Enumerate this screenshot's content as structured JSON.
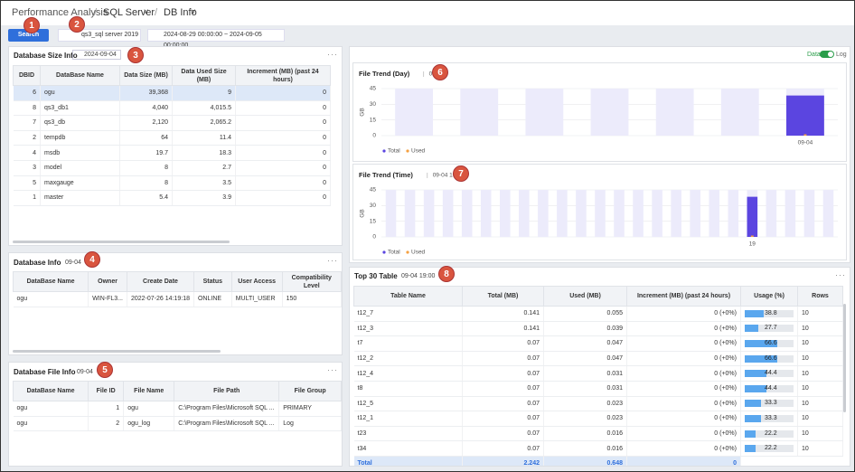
{
  "header": {
    "breadcrumb": [
      "Performance Analysis",
      "SQL Server",
      "DB Info"
    ]
  },
  "toolbar": {
    "search": "Search",
    "server": "qs3_sql server 2019",
    "date_range": "2024-08-29 00:00:00 ~ 2024-09-05 00:00:00"
  },
  "markers": [
    "1",
    "2",
    "3",
    "4",
    "5",
    "6",
    "7",
    "8"
  ],
  "db_size": {
    "title": "Database Size Info",
    "date": "2024-09-04",
    "columns": [
      "DBID",
      "DataBase Name",
      "Data Size (MB)",
      "Data Used Size (MB)",
      "Increment (MB) (past 24 hours)"
    ],
    "rows": [
      [
        6,
        "ogu",
        "39,368",
        9,
        0
      ],
      [
        8,
        "qs3_db1",
        "4,040",
        "4,015.5",
        0
      ],
      [
        7,
        "qs3_db",
        "2,120",
        "2,065.2",
        0
      ],
      [
        2,
        "tempdb",
        64,
        11.4,
        0
      ],
      [
        4,
        "msdb",
        19.7,
        18.3,
        0
      ],
      [
        3,
        "model",
        8,
        2.7,
        0
      ],
      [
        5,
        "maxgauge",
        8,
        3.5,
        0
      ],
      [
        1,
        "master",
        5.4,
        3.9,
        0
      ]
    ]
  },
  "db_info": {
    "title": "Database Info",
    "date": "09-04",
    "columns": [
      "DataBase Name",
      "Owner",
      "Create Date",
      "Status",
      "User Access",
      "Compatibility Level"
    ],
    "rows": [
      [
        "ogu",
        "WIN-FL3...",
        "2022-07-26 14:19:18",
        "ONLINE",
        "MULTI_USER",
        150
      ]
    ]
  },
  "db_file": {
    "title": "Database File Info",
    "date": "09-04",
    "columns": [
      "DataBase Name",
      "File ID",
      "File Name",
      "File Path",
      "File Group"
    ],
    "rows": [
      [
        "ogu",
        1,
        "ogu",
        "C:\\Program Files\\Microsoft SQL ...",
        "PRIMARY"
      ],
      [
        "ogu",
        2,
        "ogu_log",
        "C:\\Program Files\\Microsoft SQL ...",
        "Log"
      ]
    ]
  },
  "toggle": {
    "left": "Data",
    "right": "Log"
  },
  "chart_data": [
    {
      "type": "bar",
      "title": "File Trend (Day)",
      "subtitle": "09-04",
      "y_label": "GB",
      "categories": [
        null,
        null,
        null,
        null,
        null,
        null,
        "09-04"
      ],
      "ylim": [
        0,
        45
      ],
      "yticks": [
        0,
        15,
        30,
        45
      ],
      "grid": true,
      "series": [
        {
          "name": "Total",
          "color": "#5b45e0",
          "values": [
            null,
            null,
            null,
            null,
            null,
            null,
            38.4
          ]
        },
        {
          "name": "Used",
          "color": "#f5a142",
          "values": [
            null,
            null,
            null,
            null,
            null,
            null,
            0.01
          ]
        }
      ]
    },
    {
      "type": "bar",
      "title": "File Trend (Time)",
      "subtitle": "09-04 19:00",
      "y_label": "GB",
      "categories": [
        null,
        null,
        null,
        null,
        null,
        null,
        null,
        null,
        null,
        null,
        null,
        null,
        null,
        null,
        null,
        null,
        null,
        null,
        null,
        "19",
        null,
        null,
        null,
        null
      ],
      "ylim": [
        0,
        45
      ],
      "yticks": [
        0,
        15,
        30,
        45
      ],
      "grid": true,
      "series": [
        {
          "name": "Total",
          "color": "#5b45e0",
          "values": [
            null,
            null,
            null,
            null,
            null,
            null,
            null,
            null,
            null,
            null,
            null,
            null,
            null,
            null,
            null,
            null,
            null,
            null,
            null,
            38.4,
            null,
            null,
            null,
            null
          ]
        },
        {
          "name": "Used",
          "color": "#f5a142",
          "values": [
            null,
            null,
            null,
            null,
            null,
            null,
            null,
            null,
            null,
            null,
            null,
            null,
            null,
            null,
            null,
            null,
            null,
            null,
            null,
            0.01,
            null,
            null,
            null,
            null
          ]
        }
      ]
    }
  ],
  "top30": {
    "title": "Top 30 Table",
    "date": "09-04 19:00",
    "columns": [
      "Table Name",
      "Total (MB)",
      "Used (MB)",
      "Increment (MB) (past 24 hours)",
      "Usage (%)",
      "Rows"
    ],
    "rows": [
      [
        "t12_7",
        0.141,
        0.055,
        "0 (+0%)",
        38.8,
        10
      ],
      [
        "t12_3",
        0.141,
        0.039,
        "0 (+0%)",
        27.7,
        10
      ],
      [
        "t7",
        0.07,
        0.047,
        "0 (+0%)",
        66.6,
        10
      ],
      [
        "t12_2",
        0.07,
        0.047,
        "0 (+0%)",
        66.6,
        10
      ],
      [
        "t12_4",
        0.07,
        0.031,
        "0 (+0%)",
        44.4,
        10
      ],
      [
        "t8",
        0.07,
        0.031,
        "0 (+0%)",
        44.4,
        10
      ],
      [
        "t12_5",
        0.07,
        0.023,
        "0 (+0%)",
        33.3,
        10
      ],
      [
        "t12_1",
        0.07,
        0.023,
        "0 (+0%)",
        33.3,
        10
      ],
      [
        "t23",
        0.07,
        0.016,
        "0 (+0%)",
        22.2,
        10
      ],
      [
        "t34",
        0.07,
        0.016,
        "0 (+0%)",
        22.2,
        10
      ]
    ],
    "total": [
      "Total",
      2.242,
      0.648,
      0
    ]
  }
}
